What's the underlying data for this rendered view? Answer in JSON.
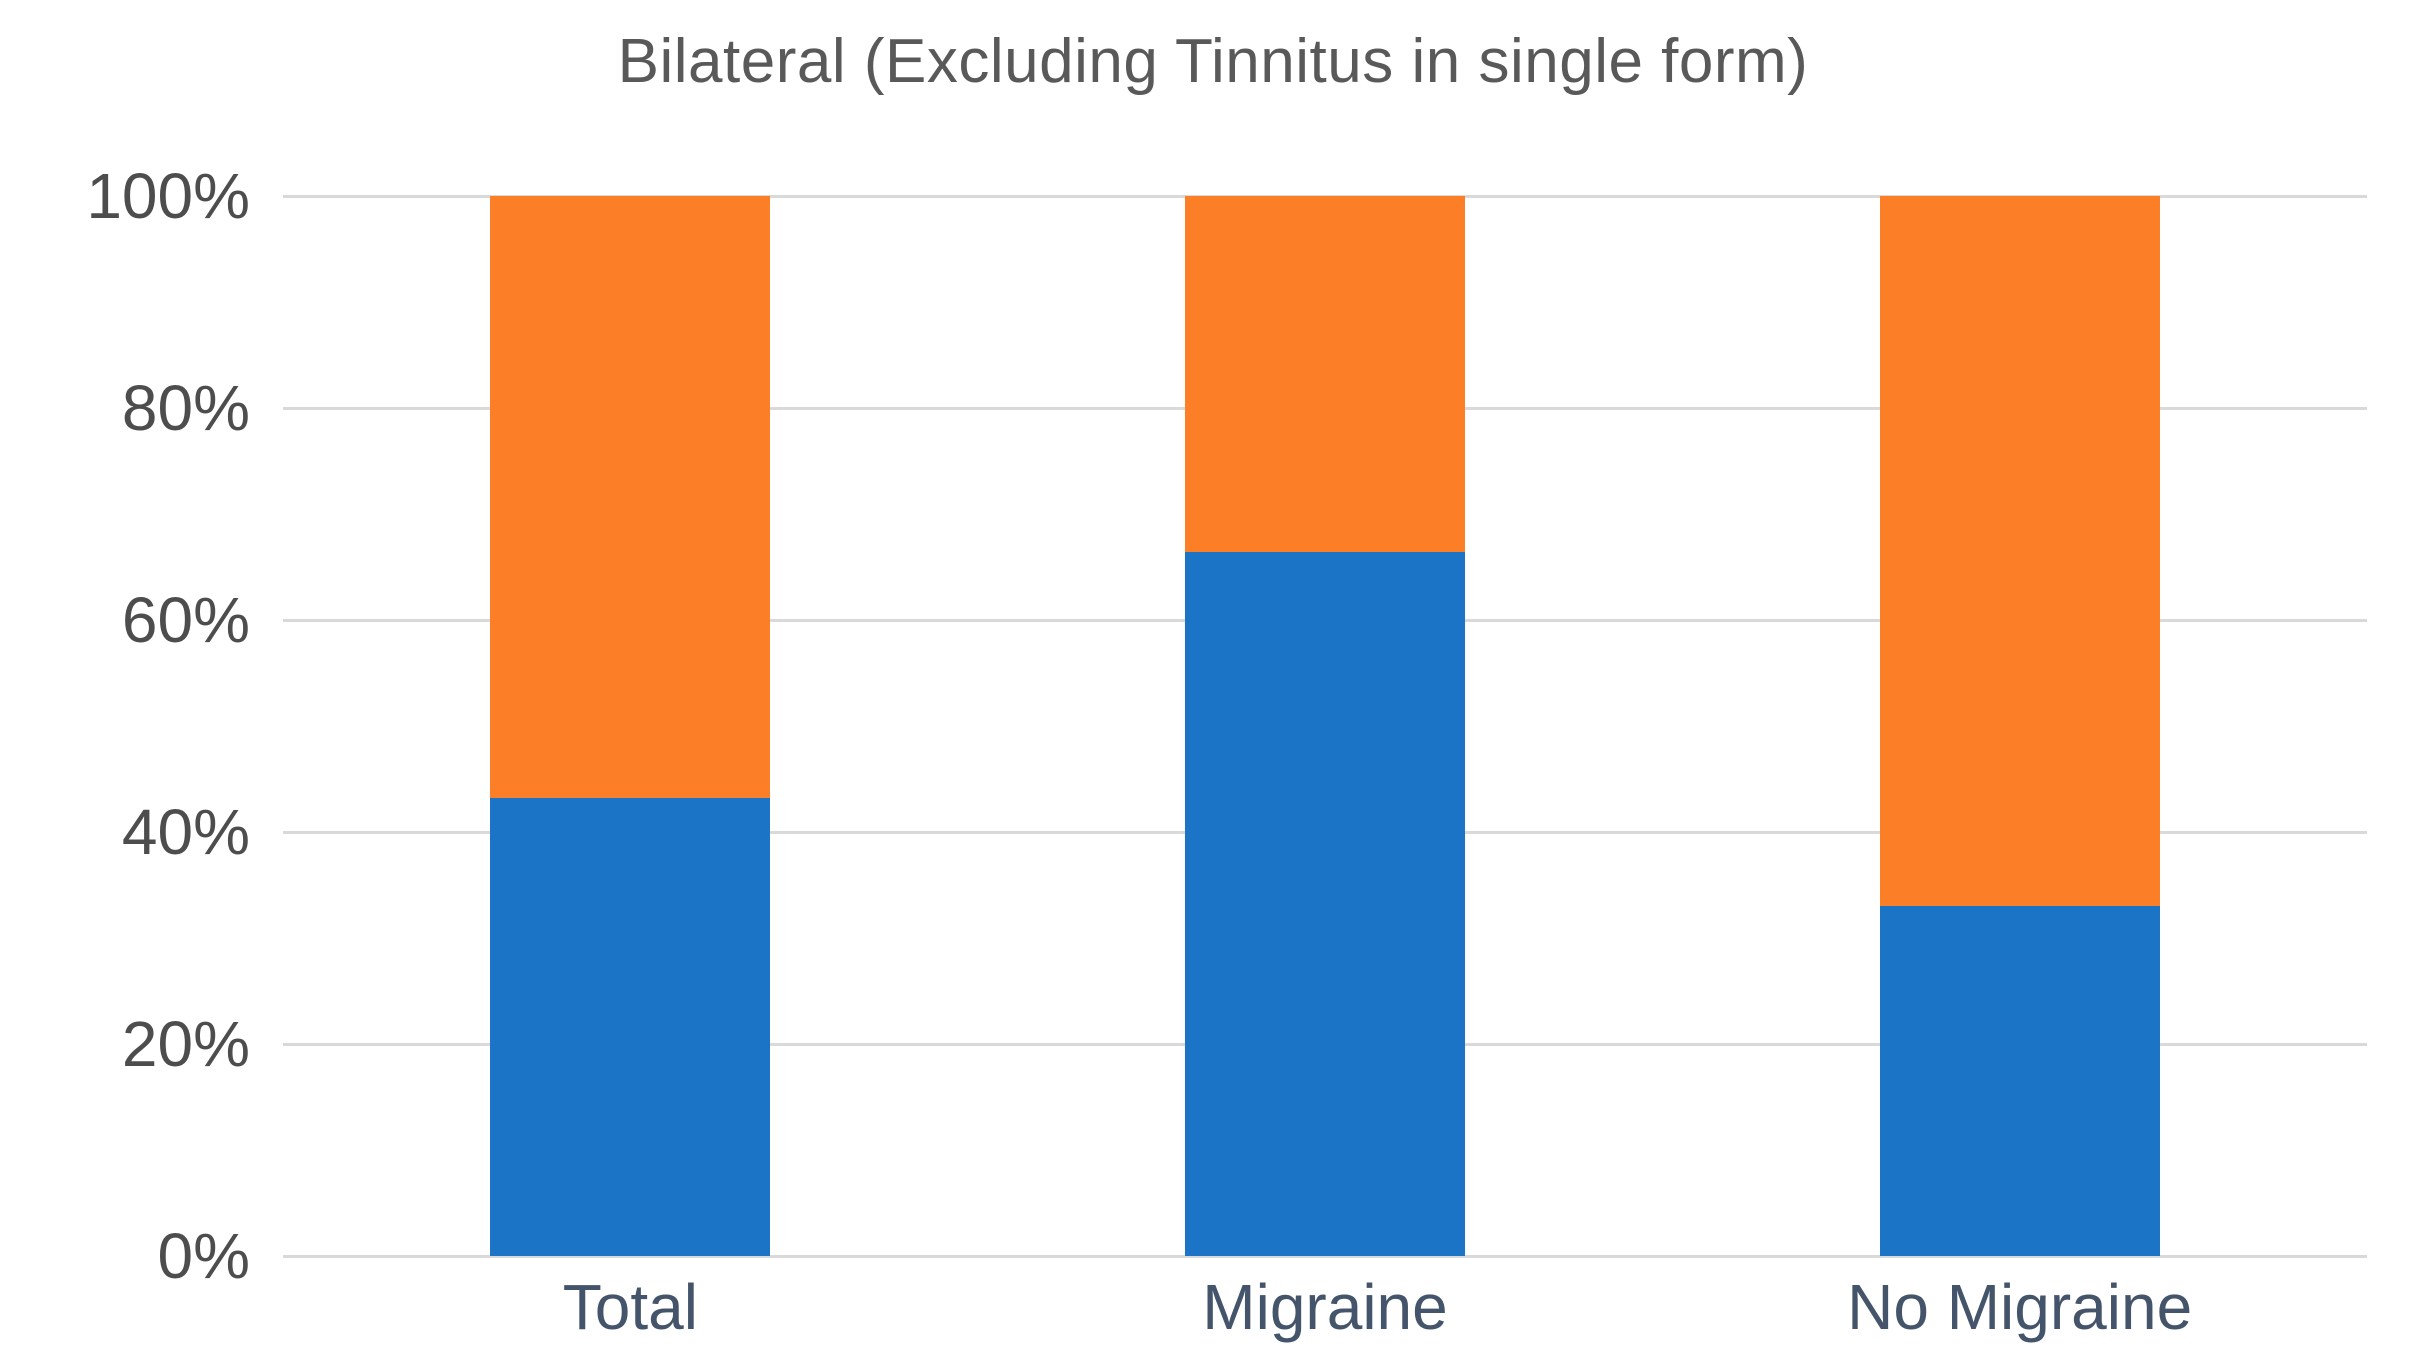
{
  "chart_data": {
    "type": "bar",
    "subtype": "stacked-100-percent-column",
    "title": "Bilateral (Excluding Tinnitus in single form)",
    "categories": [
      "Total",
      "Migraine",
      "No Migraine"
    ],
    "series": [
      {
        "name": "blue-bottom-segment",
        "color": "#1c74c6",
        "values": [
          43.2,
          66.4,
          33.0
        ]
      },
      {
        "name": "orange-top-segment",
        "color": "#fc7e27",
        "values": [
          56.8,
          33.6,
          67.0
        ]
      }
    ],
    "yticks": [
      "0%",
      "20%",
      "40%",
      "60%",
      "80%",
      "100%"
    ],
    "ytick_values": [
      0,
      20,
      40,
      60,
      80,
      100
    ],
    "ylim": [
      0,
      100
    ],
    "grid": true,
    "legend": "none",
    "colors": {
      "background": "#ffffff",
      "gridline": "#d9d9d9",
      "title_text": "#595959",
      "y_tick_text": "#4d4d4d",
      "category_text": "#44546a"
    }
  }
}
